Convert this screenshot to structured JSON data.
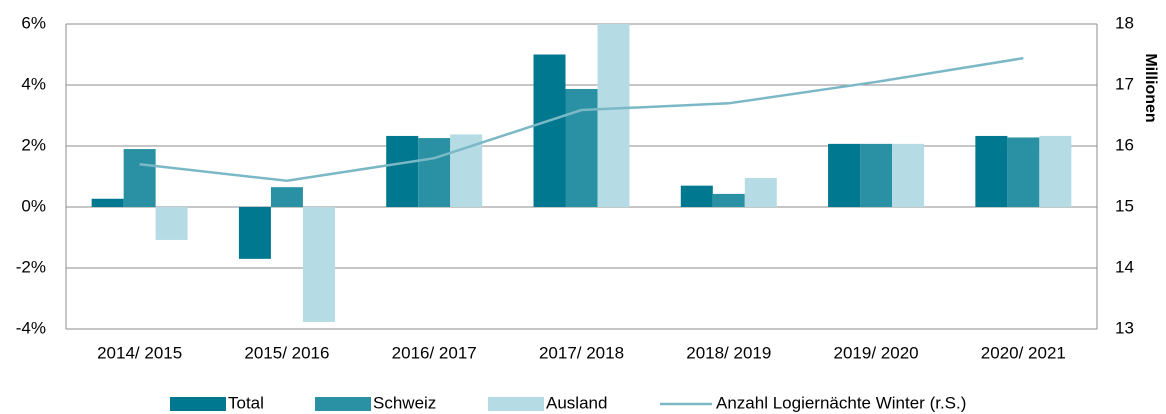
{
  "chart_data": {
    "type": "bar",
    "categories": [
      "2014/ 2015",
      "2015/ 2016",
      "2016/ 2017",
      "2017/ 2018",
      "2018/ 2019",
      "2019/ 2020",
      "2020/ 2021"
    ],
    "series": [
      {
        "name": "Total",
        "color": "#00788f",
        "values": [
          0.27,
          -1.7,
          2.33,
          5.0,
          0.7,
          2.07,
          2.33
        ]
      },
      {
        "name": "Schweiz",
        "color": "#2a91a5",
        "values": [
          1.9,
          0.65,
          2.26,
          3.87,
          0.43,
          2.07,
          2.28
        ]
      },
      {
        "name": "Ausland",
        "color": "#b5dbe4",
        "values": [
          -1.08,
          -3.77,
          2.38,
          6.0,
          0.95,
          2.07,
          2.33
        ]
      },
      {
        "name": "Anzahl Logiernächte Winter (r.S.)",
        "color": "#7bb8c6",
        "type": "line",
        "axis": "y2",
        "values": [
          15.7,
          15.43,
          15.8,
          16.59,
          16.7,
          17.05,
          17.44
        ]
      }
    ],
    "ylim": [
      -4,
      6
    ],
    "yticks": [
      {
        "value": -4,
        "label": "-4%"
      },
      {
        "value": -2,
        "label": "-2%"
      },
      {
        "value": 0,
        "label": "0%"
      },
      {
        "value": 2,
        "label": "2%"
      },
      {
        "value": 4,
        "label": "4%"
      },
      {
        "value": 6,
        "label": "6%"
      }
    ],
    "y2lim": [
      13,
      18
    ],
    "y2ticks": [
      13,
      14,
      15,
      16,
      17,
      18
    ],
    "y2label": "Millionen",
    "grid": true,
    "legend": "bottom"
  }
}
